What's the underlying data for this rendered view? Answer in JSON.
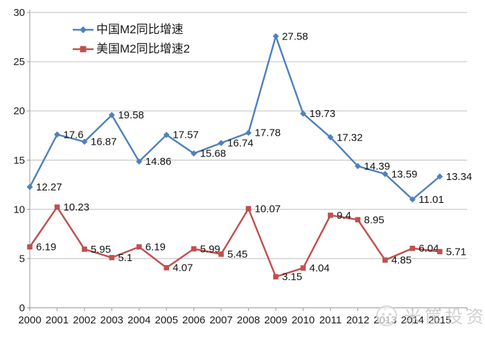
{
  "chart_data": {
    "type": "line",
    "title": "",
    "xlabel": "",
    "ylabel": "",
    "categories": [
      "2000",
      "2001",
      "2002",
      "2003",
      "2004",
      "2005",
      "2006",
      "2007",
      "2008",
      "2009",
      "2010",
      "2011",
      "2012",
      "2013",
      "2014",
      "2015"
    ],
    "series": [
      {
        "name": "中国M2同比增速",
        "color": "#4F81BD",
        "marker": "diamond",
        "values": [
          12.27,
          17.6,
          16.87,
          19.58,
          14.86,
          17.57,
          15.68,
          16.74,
          17.78,
          27.58,
          19.73,
          17.32,
          14.39,
          13.59,
          11.01,
          13.34
        ]
      },
      {
        "name": "美国M2同比增速2",
        "color": "#C0504D",
        "marker": "square",
        "values": [
          6.19,
          10.23,
          5.95,
          5.1,
          6.19,
          4.07,
          5.99,
          5.45,
          10.07,
          3.15,
          4.04,
          9.4,
          8.95,
          4.85,
          6.04,
          5.71
        ]
      }
    ],
    "ylim": [
      0,
      30
    ],
    "yticks": [
      0,
      5,
      10,
      15,
      20,
      25,
      30
    ],
    "grid": "horizontal-only",
    "legend_position": "inside-top-left",
    "data_labels": "right-of-point"
  },
  "colors": {
    "series_china": "#4F81BD",
    "series_usa": "#C0504D",
    "gridline": "#C6C6C6",
    "axis_line": "#A6A6A6",
    "text": "#1A1A1A",
    "watermark": "#D2D2D2"
  },
  "watermark": {
    "text": "米筐投资"
  }
}
